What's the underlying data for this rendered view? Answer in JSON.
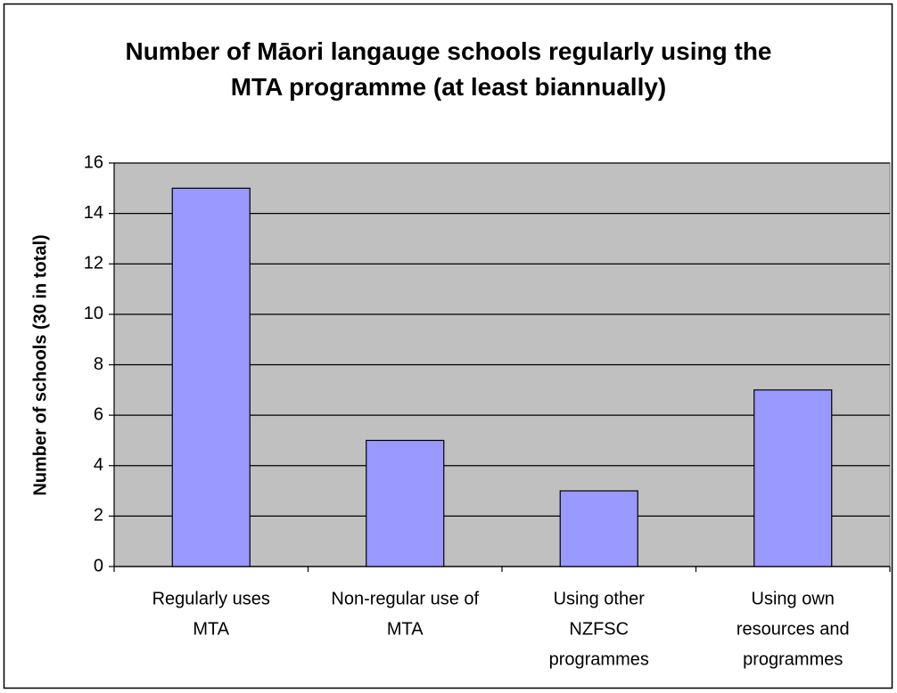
{
  "chart_data": {
    "type": "bar",
    "title": "Number of Māori langauge schools regularly using the MTA programme (at least biannually)",
    "y_label": "Number of schools (30 in total)",
    "categories": [
      [
        "Regularly uses",
        "MTA"
      ],
      [
        "Non-regular use of",
        "MTA"
      ],
      [
        "Using other",
        "NZFSC",
        "programmes"
      ],
      [
        "Using own",
        "resources and",
        "programmes"
      ]
    ],
    "values": [
      15,
      5,
      3,
      7
    ],
    "color": "#9999ff",
    "ylim": [
      0,
      16
    ],
    "yticks": [
      0,
      2,
      4,
      6,
      8,
      10,
      12,
      14,
      16
    ],
    "grid": true
  }
}
